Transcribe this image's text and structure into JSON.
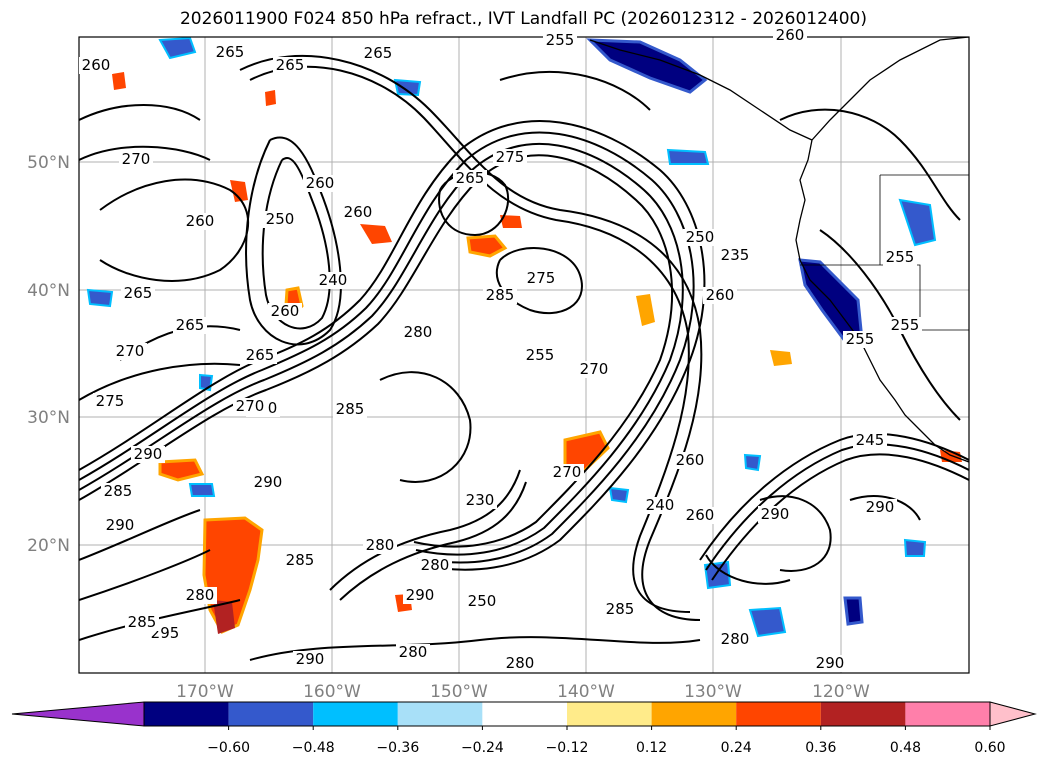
{
  "title": "2026011900 F024 850 hPa refract., IVT Landfall PC (2026012312 - 2026012400)",
  "map": {
    "lat_ticks": [
      "50°N",
      "40°N",
      "30°N",
      "20°N"
    ],
    "lon_ticks": [
      "170°W",
      "160°W",
      "150°W",
      "140°W",
      "130°W",
      "120°W"
    ],
    "contour_color": "#000000",
    "contour_labels": [
      "265",
      "265",
      "260",
      "265",
      "255",
      "270",
      "265",
      "260",
      "275",
      "265",
      "260",
      "260",
      "250",
      "240",
      "260",
      "265",
      "270",
      "265",
      "270",
      "275",
      "275",
      "280",
      "270",
      "255",
      "250",
      "255",
      "245",
      "260",
      "260",
      "285",
      "290",
      "290",
      "295",
      "290",
      "285",
      "285",
      "285",
      "280",
      "270",
      "280",
      "270",
      "280",
      "290",
      "290",
      "250",
      "255",
      "255",
      "235",
      "280",
      "285",
      "290",
      "260",
      "240",
      "280",
      "290",
      "285",
      "290",
      "230",
      "260",
      "280"
    ]
  },
  "colorbar": {
    "tick_labels": [
      "−0.60",
      "−0.48",
      "−0.36",
      "−0.24",
      "−0.12",
      "0.12",
      "0.24",
      "0.36",
      "0.48",
      "0.60"
    ],
    "colors": [
      "#9932cc",
      "#8a2be2",
      "#000080",
      "#3459cc",
      "#00bfff",
      "#a8e0f8",
      "#ffffff",
      "#ffeb8a",
      "#ffa500",
      "#ff4500",
      "#b22222",
      "#ff7faa",
      "#ffc0cb"
    ]
  }
}
